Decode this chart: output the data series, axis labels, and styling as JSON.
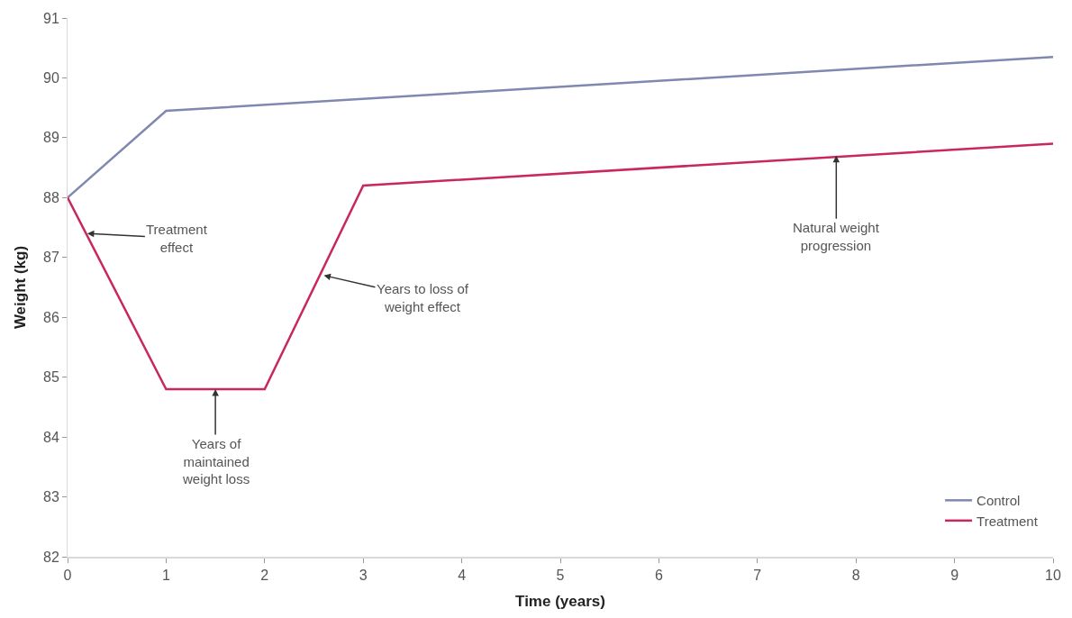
{
  "chart_data": {
    "type": "line",
    "xlabel": "Time (years)",
    "ylabel": "Weight (kg)",
    "xlim": [
      0,
      10
    ],
    "xticks": [
      0,
      1,
      2,
      3,
      4,
      5,
      6,
      7,
      8,
      9,
      10
    ],
    "ylim": [
      82,
      91
    ],
    "yticks": [
      82,
      83,
      84,
      85,
      86,
      87,
      88,
      89,
      90,
      91
    ],
    "legend": "bottom right",
    "marker": "none",
    "line_style": "solid",
    "series": [
      {
        "name": "Control",
        "color": "#8088b0",
        "x": [
          0,
          1,
          10
        ],
        "values": [
          88,
          89.45,
          90.35
        ]
      },
      {
        "name": "Treatment",
        "color": "#c8285a",
        "x": [
          0,
          1,
          2,
          3,
          10
        ],
        "values": [
          88,
          84.8,
          84.8,
          88.2,
          88.9
        ]
      }
    ],
    "annotations": [
      {
        "text": "Treatment\neffect",
        "x": 0.2,
        "y": 87.4
      },
      {
        "text": "Years of\nmaintained\nweight loss",
        "x": 1.5,
        "y": 84.8
      },
      {
        "text": "Years to loss of\nweight effect",
        "x": 2.6,
        "y": 86.7
      },
      {
        "text": "Natural weight\nprogression",
        "x": 7.8,
        "y": 88.7
      }
    ]
  }
}
